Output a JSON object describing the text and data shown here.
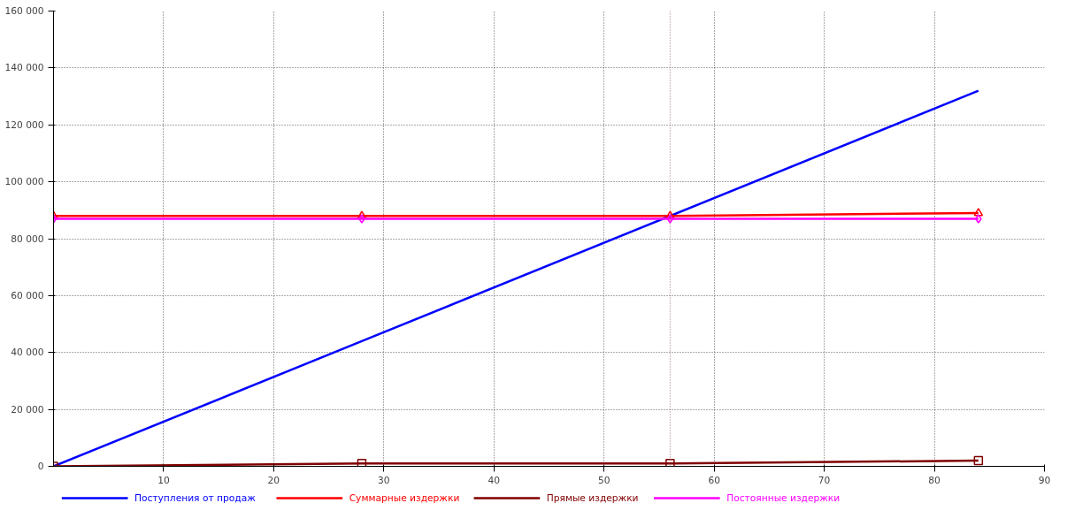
{
  "chart_data": {
    "type": "line",
    "x": [
      0,
      28,
      56,
      84
    ],
    "series": [
      {
        "name": "Поступления от продаж",
        "color": "#0000ff",
        "values": [
          0,
          44000,
          88000,
          132000
        ],
        "marker": "none"
      },
      {
        "name": "Суммарные издержки",
        "color": "#ff0000",
        "values": [
          88000,
          88000,
          88000,
          89000
        ],
        "marker": "triangle"
      },
      {
        "name": "Прямые издержки",
        "color": "#800000",
        "values": [
          0,
          1000,
          1000,
          2000
        ],
        "marker": "square"
      },
      {
        "name": "Постоянные издержки",
        "color": "#ff00ff",
        "values": [
          87000,
          87000,
          87000,
          87000
        ],
        "marker": "diamond"
      }
    ],
    "xlim": [
      0,
      90
    ],
    "xticks": [
      10,
      20,
      30,
      40,
      50,
      60,
      70,
      80,
      90
    ],
    "ylim": [
      0,
      160000
    ],
    "yticks": [
      {
        "value": 0,
        "label": "0"
      },
      {
        "value": 20000,
        "label": "20 000"
      },
      {
        "value": 40000,
        "label": "40 000"
      },
      {
        "value": 60000,
        "label": "60 000"
      },
      {
        "value": 80000,
        "label": "80 000"
      },
      {
        "value": 100000,
        "label": "100 000"
      },
      {
        "value": 120000,
        "label": "120 000"
      },
      {
        "value": 140000,
        "label": "140 000"
      },
      {
        "value": 160000,
        "label": "160 000"
      }
    ],
    "ref_lines": [
      {
        "axis": "x",
        "value": 56,
        "label": null,
        "color": "#a06060",
        "line_style": "dotted"
      }
    ],
    "grid": true,
    "legend": "bottom",
    "line_style": "solid"
  }
}
